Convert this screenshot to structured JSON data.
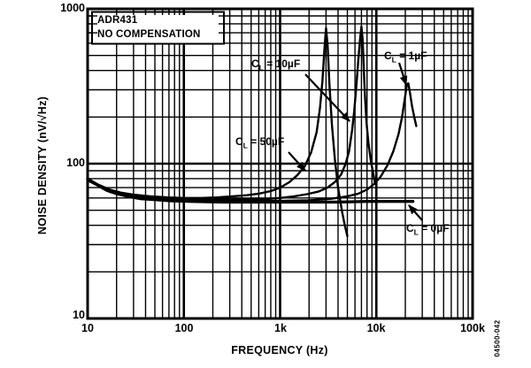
{
  "figure": {
    "watermark": "04500-042"
  },
  "chart_data": {
    "type": "line",
    "title_box": {
      "line1": "ADR431",
      "line2": "NO COMPENSATION"
    },
    "xlabel": "FREQUENCY (Hz)",
    "ylabel": "NOISE DENSITY (nV/√Hz)",
    "x_scale": "log",
    "y_scale": "log",
    "xlim": [
      10,
      100000
    ],
    "ylim": [
      10,
      1000
    ],
    "x_tick_labels": [
      "10",
      "100",
      "1k",
      "10k",
      "100k"
    ],
    "y_tick_labels": [
      "1000",
      "100",
      "10"
    ],
    "grid": "full major+minor log-log grid, black lines on white, framed",
    "legend_position": "inline curve labels with arrows",
    "colors": {
      "line": "#000000",
      "background": "#ffffff"
    },
    "series": [
      {
        "name": "CL = 50µF",
        "cl_uf": 50,
        "width": 2.4,
        "points": [
          [
            10,
            80
          ],
          [
            13,
            73
          ],
          [
            17,
            68
          ],
          [
            22,
            65
          ],
          [
            30,
            63
          ],
          [
            45,
            61.5
          ],
          [
            70,
            60.5
          ],
          [
            100,
            60
          ],
          [
            150,
            60
          ],
          [
            220,
            60.5
          ],
          [
            320,
            61.5
          ],
          [
            450,
            62.5
          ],
          [
            600,
            64
          ],
          [
            800,
            66.5
          ],
          [
            1000,
            70
          ],
          [
            1250,
            76
          ],
          [
            1500,
            84
          ],
          [
            1800,
            96
          ],
          [
            2100,
            118
          ],
          [
            2400,
            160
          ],
          [
            2600,
            230
          ],
          [
            2750,
            340
          ],
          [
            2900,
            570
          ],
          [
            3000,
            750
          ],
          [
            3120,
            580
          ],
          [
            3250,
            330
          ],
          [
            3450,
            180
          ],
          [
            3700,
            108
          ],
          [
            4000,
            70
          ],
          [
            4400,
            49
          ],
          [
            4700,
            40
          ],
          [
            5000,
            34
          ]
        ]
      },
      {
        "name": "CL = 10µF",
        "cl_uf": 10,
        "width": 2.4,
        "points": [
          [
            10,
            79
          ],
          [
            13,
            72
          ],
          [
            17,
            67
          ],
          [
            22,
            64
          ],
          [
            30,
            62
          ],
          [
            45,
            60.5
          ],
          [
            70,
            59.5
          ],
          [
            100,
            59
          ],
          [
            200,
            58.5
          ],
          [
            400,
            58.5
          ],
          [
            700,
            59
          ],
          [
            1000,
            60
          ],
          [
            1400,
            61.5
          ],
          [
            1900,
            63.5
          ],
          [
            2500,
            66
          ],
          [
            3100,
            70
          ],
          [
            3700,
            76
          ],
          [
            4300,
            85
          ],
          [
            4800,
            100
          ],
          [
            5200,
            120
          ],
          [
            5600,
            165
          ],
          [
            5900,
            220
          ],
          [
            6200,
            320
          ],
          [
            6500,
            470
          ],
          [
            6800,
            650
          ],
          [
            7000,
            770
          ],
          [
            7200,
            640
          ],
          [
            7400,
            420
          ],
          [
            7600,
            280
          ],
          [
            7900,
            185
          ],
          [
            8300,
            135
          ],
          [
            8800,
            103
          ],
          [
            9300,
            86
          ],
          [
            9700,
            74
          ]
        ]
      },
      {
        "name": "CL = 1µF",
        "cl_uf": 1,
        "width": 2.4,
        "points": [
          [
            10,
            78
          ],
          [
            14,
            70
          ],
          [
            20,
            65
          ],
          [
            30,
            62
          ],
          [
            50,
            60
          ],
          [
            80,
            58.5
          ],
          [
            130,
            58
          ],
          [
            250,
            57.5
          ],
          [
            500,
            57.5
          ],
          [
            1000,
            57.5
          ],
          [
            2000,
            58
          ],
          [
            3500,
            59.5
          ],
          [
            5000,
            61.5
          ],
          [
            6500,
            64
          ],
          [
            8000,
            68
          ],
          [
            9500,
            74
          ],
          [
            11000,
            82
          ],
          [
            13000,
            97
          ],
          [
            15000,
            120
          ],
          [
            17000,
            155
          ],
          [
            18500,
            200
          ],
          [
            19800,
            265
          ],
          [
            20800,
            325
          ],
          [
            21500,
            330
          ],
          [
            22300,
            290
          ],
          [
            23500,
            235
          ],
          [
            25000,
            195
          ],
          [
            26000,
            175
          ]
        ]
      },
      {
        "name": "CL = 0µF",
        "cl_uf": 0,
        "width": 3.4,
        "points": [
          [
            10,
            80
          ],
          [
            13,
            72
          ],
          [
            16,
            67
          ],
          [
            20,
            64
          ],
          [
            26,
            61.5
          ],
          [
            35,
            59.5
          ],
          [
            50,
            58.5
          ],
          [
            75,
            57.5
          ],
          [
            120,
            57
          ],
          [
            250,
            56.5
          ],
          [
            600,
            56.5
          ],
          [
            1500,
            56.5
          ],
          [
            4000,
            56.5
          ],
          [
            8000,
            57
          ],
          [
            15000,
            57
          ],
          [
            24000,
            57
          ]
        ]
      }
    ],
    "annotations": [
      {
        "base": "C",
        "sub": "L",
        "rest": " = 10µF",
        "label_left": 284,
        "label_top": 65,
        "arrow": [
          345,
          84,
          395,
          137
        ]
      },
      {
        "base": "C",
        "sub": "L",
        "rest": " = 1µF",
        "label_left": 434,
        "label_top": 56,
        "arrow": [
          451,
          71,
          459,
          96
        ]
      },
      {
        "base": "C",
        "sub": "L",
        "rest": " = 50µF",
        "label_left": 266,
        "label_top": 153,
        "arrow": [
          326,
          172,
          345,
          193
        ]
      },
      {
        "base": "C",
        "sub": "L",
        "rest": " = 0µF",
        "label_left": 459,
        "label_top": 251,
        "arrow": [
          477,
          249,
          462,
          232
        ]
      }
    ]
  }
}
